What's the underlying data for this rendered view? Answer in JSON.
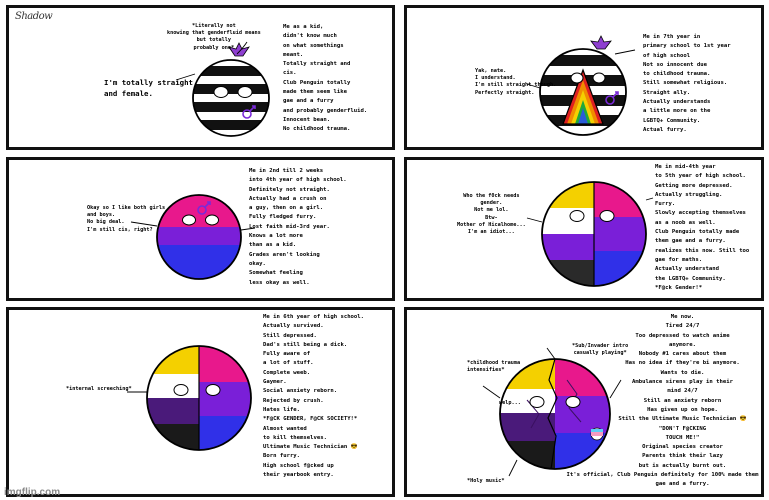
{
  "signature": "Shadow",
  "footer": "imgflip.com",
  "colors": {
    "border": "#111111",
    "nonbinary_yellow": "#f4d000",
    "nonbinary_purple": "#7a1fd8",
    "pink": "#e8188c",
    "blue": "#3030e8",
    "dark_purple": "#4a1a7a"
  },
  "panel1": {
    "note_lines": [
      "*Literally not",
      "knowing that genderfluid means",
      "but totally",
      "probably one*"
    ],
    "speech_lines": [
      "I'm totally straight",
      "and female."
    ],
    "narration": [
      "Me as a kid,",
      "didn't know much",
      "on what somethings",
      "meant.",
      "Totally straight and",
      "cis.",
      "Club Penguin totally",
      "made them seem like",
      "gae and a furry",
      "and probably genderfluid.",
      "Innocent bean.",
      "No childhood trauma."
    ]
  },
  "panel2": {
    "speech_lines": [
      "Yak, nate.",
      "I understand.",
      "I'm still straight though.",
      "Perfectly straight."
    ],
    "narration": [
      "Me in 7th year in",
      "primary school to 1st year",
      "of high school",
      "Not so innocent due",
      "to childhood trauma.",
      "Still somewhat religious.",
      "Straight ally.",
      "Actually understands",
      "a little more on the",
      "LGBTQ+ Community.",
      "Actual furry."
    ]
  },
  "panel3": {
    "speech_lines": [
      "Okay so I like both girls",
      "and boys.",
      "No big deal.",
      "I'm still cis, right?"
    ],
    "narration": [
      "Me in 2nd till 2 weeks",
      "into 4th year of high school.",
      "Definitely not straight.",
      "Actually had a crush on",
      "a guy, then on a girl.",
      "Fully fledged furry.",
      "Lost faith mid-3rd year.",
      "Knows a lot more",
      "than as a kid.",
      "Grades aren't looking",
      "okay.",
      "Somewhat feeling",
      "less okay as well."
    ]
  },
  "panel4": {
    "speech_lines": [
      "Who the f0ck needs",
      "gender.",
      "Not me lol.",
      "Btw-",
      "Mother of Hicalhome...",
      "I'm an idiot..."
    ],
    "narration": [
      "Me in mid-4th year",
      "to 5th year of high school.",
      "Getting more depressed.",
      "Actually struggling.",
      "Furry.",
      "Slowly accepting themselves",
      "as a noob as well.",
      "Club Penguin totally made",
      "them gae and a furry.",
      "realizes this now. Still too",
      "gae for maths.",
      "Actually understand",
      "the LGBTQ+ Community.",
      "*F@ck Gender!*"
    ]
  },
  "panel5": {
    "note_lines": [
      "*internal screeching*"
    ],
    "narration": [
      "Me in 6th year of high school.",
      "Actually survived.",
      "Still depressed.",
      "Dad's still being a dick.",
      "Fully aware of",
      "a lot of stuff.",
      "Complete weeb.",
      "Gaymer.",
      "Social anxiety reborn.",
      "Rejected by crush.",
      "Hates life.",
      "*F@CK GENDER, F@CK SOCIETY!*",
      "Almost wanted",
      "to kill themselves.",
      "Ultimate Music Technician 😎",
      "Born furry.",
      "High school f@cked up",
      "their yearbook entry."
    ]
  },
  "panel6": {
    "note_top": [
      "*Sub/Invader intro",
      "casually playing*"
    ],
    "note_left": [
      "*childhood trauma",
      "intensifies*"
    ],
    "note_mid": [
      "welp..."
    ],
    "note_bottom": [
      "*Holy music*"
    ],
    "narration": [
      "Me now.",
      "Tired 24/7",
      "Too depressed to watch anime",
      "anymore.",
      "Nobody #1 cares about them",
      "Has no idea if they're bi anymore.",
      "Wants to die.",
      "Ambulance sirens play in their",
      "mind 24/7",
      "Still an anxiety reborn",
      "Has given up on hope.",
      "Still the Ultimate Music Technician 😎",
      "\"DON'T F@CKING",
      "TOUCH ME!\"",
      "Original species creator",
      "Parents think their lazy",
      "but is actually burnt out.",
      "It's official, Club Penguin definitely for 100% made them",
      "gae and a furry."
    ]
  }
}
